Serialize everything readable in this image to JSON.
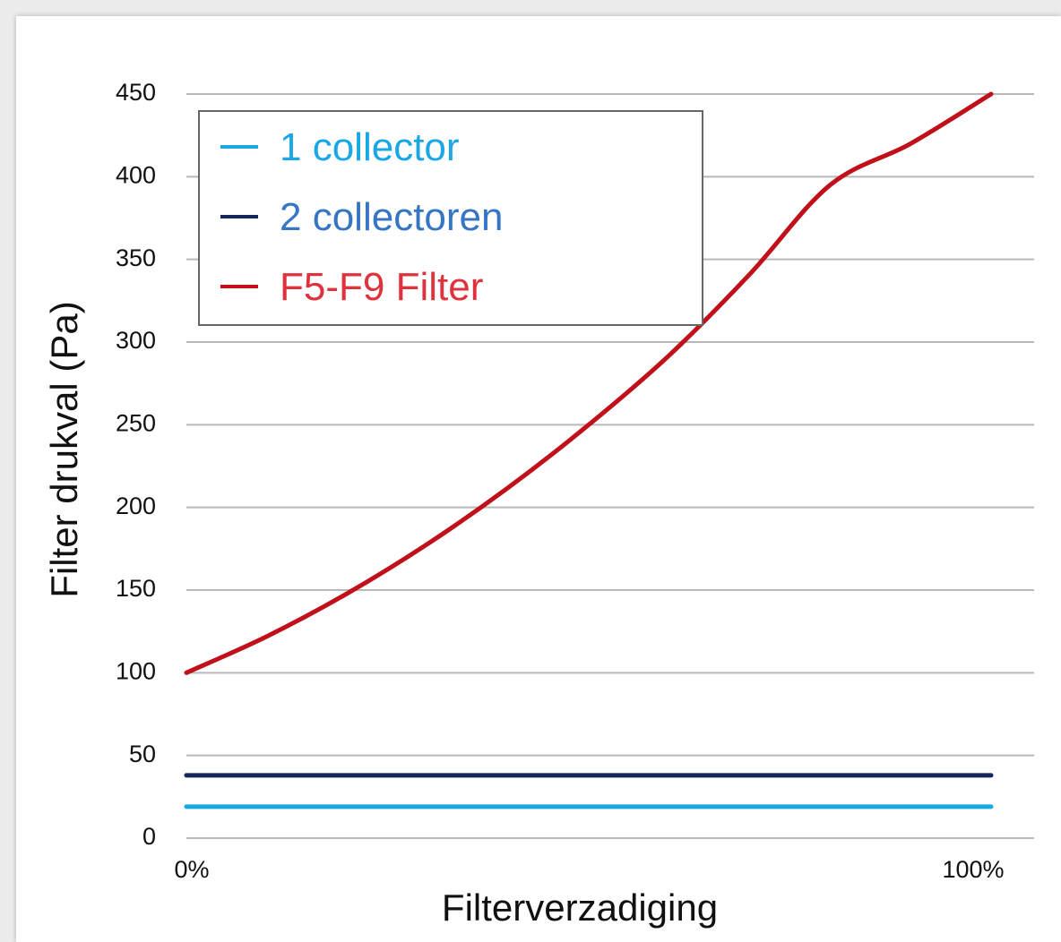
{
  "chart_data": {
    "type": "line",
    "xlabel": "Filterverzadiging",
    "ylabel": "Filter drukval (Pa)",
    "xlim": [
      0,
      100
    ],
    "ylim": [
      0,
      450
    ],
    "y_ticks": [
      "0",
      "50",
      "100",
      "150",
      "200",
      "250",
      "300",
      "350",
      "400",
      "450"
    ],
    "x_ticks": [
      {
        "value": 0,
        "label": "0%"
      },
      {
        "value": 100,
        "label": "100%"
      }
    ],
    "grid": true,
    "legend_position": "top-left",
    "series": [
      {
        "name": "1 collector",
        "color": "#1aa7e6",
        "legend_color": "#1aa7e6",
        "x": [
          0,
          100
        ],
        "y": [
          19,
          19
        ]
      },
      {
        "name": "2 collectoren",
        "color": "#15265e",
        "legend_color": "#3575c4",
        "x": [
          0,
          100
        ],
        "y": [
          38,
          38
        ]
      },
      {
        "name": "F5-F9 Filter",
        "color": "#c0111a",
        "legend_color": "#e0323c",
        "x": [
          0,
          10,
          20,
          30,
          40,
          50,
          60,
          70,
          80,
          90,
          100
        ],
        "y": [
          100,
          122,
          148,
          178,
          212,
          250,
          292,
          341,
          395,
          420,
          450
        ]
      }
    ]
  }
}
